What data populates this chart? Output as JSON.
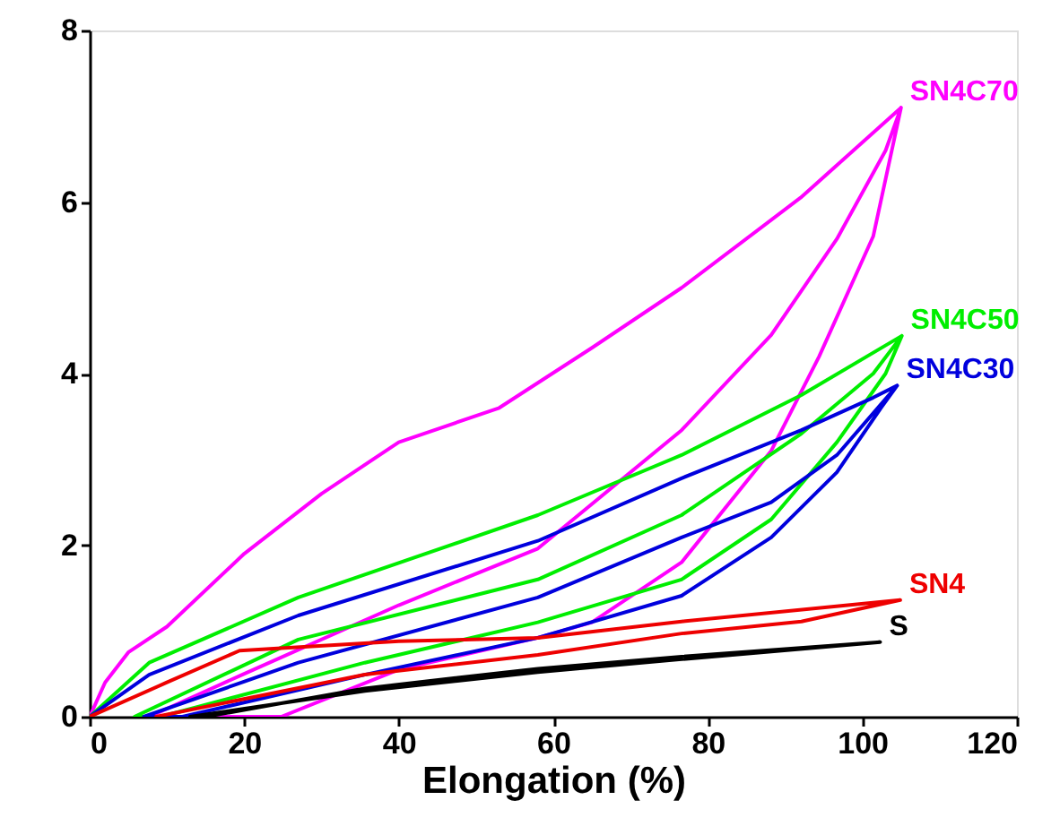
{
  "chart_data": {
    "type": "line",
    "xlabel": "Elongation (%)",
    "xlim": [
      0,
      120
    ],
    "xticks": [
      0,
      20,
      40,
      60,
      80,
      100,
      120
    ],
    "ylim": [
      0,
      8
    ],
    "yticks": [
      0,
      2,
      4,
      6,
      8
    ],
    "grid": false,
    "line_style": "solid",
    "marker": "none",
    "series": [
      {
        "name": "SN4C70",
        "color": "#ff00ff",
        "x": [
          0,
          2,
          5,
          10,
          20,
          30,
          40,
          53,
          65,
          76.6,
          92,
          105,
          101.4,
          94.4,
          88.2,
          76.6,
          65,
          58,
          40,
          24.8,
          7.7,
          20,
          40,
          58,
          76.6,
          88.2,
          96.7,
          103,
          105
        ],
        "values": [
          0,
          0.4,
          0.75,
          1.05,
          1.9,
          2.6,
          3.2,
          3.6,
          4.3,
          5.0,
          6.05,
          7.1,
          5.6,
          4.2,
          3.1,
          1.8,
          1.1,
          0.92,
          0.55,
          0,
          0,
          0.5,
          1.3,
          1.96,
          3.34,
          4.45,
          5.57,
          6.6,
          7.1
        ]
      },
      {
        "name": "SN4C50",
        "color": "#00ee00",
        "x": [
          0,
          7.7,
          27,
          58,
          76.6,
          92.1,
          105.1,
          103,
          96.7,
          88.2,
          76.6,
          58,
          35.6,
          9.2,
          5.8,
          27,
          58,
          76.6,
          92.1,
          101.4,
          105.1
        ],
        "values": [
          0,
          0.63,
          1.39,
          2.35,
          3.05,
          3.75,
          4.44,
          4.0,
          3.2,
          2.3,
          1.6,
          1.1,
          0.63,
          0,
          0,
          0.9,
          1.6,
          2.35,
          3.3,
          4.0,
          4.44
        ]
      },
      {
        "name": "SN4C30",
        "color": "#0000dd",
        "x": [
          0,
          7.7,
          27,
          58,
          76.6,
          92.1,
          101.4,
          104.5,
          102.4,
          96.7,
          88.2,
          76.6,
          58,
          35.6,
          12,
          7,
          27,
          58,
          76.6,
          88.2,
          96.7,
          104.5
        ],
        "values": [
          0,
          0.49,
          1.18,
          2.05,
          2.78,
          3.34,
          3.72,
          3.86,
          3.6,
          2.85,
          2.09,
          1.41,
          0.92,
          0.49,
          0,
          0,
          0.63,
          1.39,
          2.09,
          2.5,
          3.05,
          3.86
        ]
      },
      {
        "name": "SN4",
        "color": "#ee0000",
        "x": [
          0,
          10,
          19.4,
          40,
          58,
          76.6,
          104.9,
          92.1,
          76.6,
          58,
          35.6,
          8.6
        ],
        "values": [
          0,
          0.4,
          0.77,
          0.88,
          0.92,
          1.11,
          1.36,
          1.11,
          0.97,
          0.72,
          0.49,
          0
        ]
      },
      {
        "name": "S",
        "color": "#000000",
        "x": [
          15,
          35.6,
          58,
          76.6,
          102.3,
          76.6,
          58,
          35.6,
          13
        ],
        "values": [
          0,
          0.33,
          0.56,
          0.7,
          0.87,
          0.67,
          0.52,
          0.3,
          0
        ]
      }
    ]
  }
}
